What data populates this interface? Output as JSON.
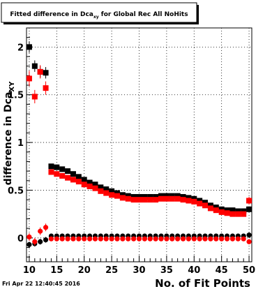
{
  "chart_data": {
    "type": "scatter",
    "title_main": "Fitted difference in Dca",
    "title_sub": "xy",
    "title_rest": " for Global Rec All NoHits",
    "ylabel_main": "difference in Dca",
    "ylabel_sub": "XY",
    "xlabel": "No. of Fit Points",
    "timestamp": "Fri Apr 22 12:40:45 2016",
    "xlim": [
      9.5,
      50.5
    ],
    "ylim": [
      -0.25,
      2.2
    ],
    "grid": true,
    "x_ticks": [
      10,
      15,
      20,
      25,
      30,
      35,
      40,
      45,
      50
    ],
    "x_tick_labels": [
      "10",
      "15",
      "20",
      "25",
      "30",
      "35",
      "40",
      "45",
      "50"
    ],
    "y_ticks": [
      0,
      0.5,
      1,
      1.5,
      2
    ],
    "y_tick_labels": [
      "0",
      "0.5",
      "1",
      "1.5",
      "2"
    ],
    "colors": {
      "black_series": "#000000",
      "red_series": "#ff0000"
    },
    "series": [
      {
        "marker": "square",
        "color": "#000000",
        "x": [
          10,
          11,
          12,
          13,
          14,
          15,
          16,
          17,
          18,
          19,
          20,
          21,
          22,
          23,
          24,
          25,
          26,
          27,
          28,
          29,
          30,
          31,
          32,
          33,
          34,
          35,
          36,
          37,
          38,
          39,
          40,
          41,
          42,
          43,
          44,
          45,
          46,
          47,
          48,
          49,
          50
        ],
        "y": [
          2.0,
          1.8,
          1.74,
          1.73,
          0.75,
          0.74,
          0.72,
          0.7,
          0.67,
          0.64,
          0.61,
          0.58,
          0.56,
          0.53,
          0.51,
          0.49,
          0.47,
          0.45,
          0.44,
          0.43,
          0.43,
          0.43,
          0.43,
          0.43,
          0.44,
          0.44,
          0.44,
          0.44,
          0.43,
          0.42,
          0.41,
          0.39,
          0.37,
          0.34,
          0.32,
          0.3,
          0.29,
          0.29,
          0.28,
          0.28,
          0.3
        ],
        "yerr": [
          0.06,
          0.06,
          0.06,
          0.06,
          0.01,
          0.01,
          0.01,
          0.01,
          0.01,
          0.01,
          0.01,
          0.01,
          0.01,
          0.01,
          0.01,
          0.01,
          0.01,
          0.01,
          0.01,
          0.01,
          0.01,
          0.01,
          0.01,
          0.01,
          0.01,
          0.01,
          0.01,
          0.01,
          0.01,
          0.01,
          0.01,
          0.01,
          0.01,
          0.01,
          0.01,
          0.01,
          0.01,
          0.01,
          0.01,
          0.01,
          0.03
        ]
      },
      {
        "marker": "square",
        "color": "#ff0000",
        "x": [
          10,
          11,
          12,
          13,
          14,
          15,
          16,
          17,
          18,
          19,
          20,
          21,
          22,
          23,
          24,
          25,
          26,
          27,
          28,
          29,
          30,
          31,
          32,
          33,
          34,
          35,
          36,
          37,
          38,
          39,
          40,
          41,
          42,
          43,
          44,
          45,
          46,
          47,
          48,
          49,
          50
        ],
        "y": [
          1.67,
          1.48,
          1.74,
          1.57,
          0.69,
          0.67,
          0.65,
          0.63,
          0.61,
          0.59,
          0.56,
          0.54,
          0.52,
          0.49,
          0.47,
          0.45,
          0.44,
          0.42,
          0.41,
          0.4,
          0.4,
          0.4,
          0.4,
          0.4,
          0.41,
          0.41,
          0.41,
          0.41,
          0.4,
          0.39,
          0.38,
          0.36,
          0.34,
          0.31,
          0.29,
          0.27,
          0.26,
          0.25,
          0.25,
          0.25,
          0.39
        ],
        "yerr": [
          0.08,
          0.07,
          0.07,
          0.07,
          0.01,
          0.01,
          0.01,
          0.01,
          0.01,
          0.01,
          0.01,
          0.01,
          0.01,
          0.01,
          0.01,
          0.01,
          0.01,
          0.01,
          0.01,
          0.01,
          0.01,
          0.01,
          0.01,
          0.01,
          0.01,
          0.01,
          0.01,
          0.01,
          0.01,
          0.01,
          0.01,
          0.01,
          0.01,
          0.01,
          0.01,
          0.01,
          0.01,
          0.01,
          0.01,
          0.01,
          0.04
        ]
      },
      {
        "marker": "circle",
        "color": "#000000",
        "x": [
          10,
          11,
          12,
          13,
          14,
          15,
          16,
          17,
          18,
          19,
          20,
          21,
          22,
          23,
          24,
          25,
          26,
          27,
          28,
          29,
          30,
          31,
          32,
          33,
          34,
          35,
          36,
          37,
          38,
          39,
          40,
          41,
          42,
          43,
          44,
          45,
          46,
          47,
          48,
          49,
          50
        ],
        "y": [
          -0.07,
          -0.06,
          -0.04,
          -0.02,
          0.02,
          0.02,
          0.02,
          0.02,
          0.02,
          0.02,
          0.02,
          0.02,
          0.02,
          0.02,
          0.02,
          0.02,
          0.02,
          0.02,
          0.02,
          0.02,
          0.02,
          0.02,
          0.02,
          0.02,
          0.02,
          0.02,
          0.02,
          0.02,
          0.02,
          0.02,
          0.02,
          0.02,
          0.02,
          0.02,
          0.02,
          0.02,
          0.02,
          0.02,
          0.02,
          0.02,
          0.03
        ],
        "yerr": [
          0.03,
          0.03,
          0.03,
          0.03,
          0.005,
          0.005,
          0.005,
          0.005,
          0.005,
          0.005,
          0.005,
          0.005,
          0.005,
          0.005,
          0.005,
          0.005,
          0.005,
          0.005,
          0.005,
          0.005,
          0.005,
          0.005,
          0.005,
          0.005,
          0.005,
          0.005,
          0.005,
          0.005,
          0.005,
          0.005,
          0.005,
          0.005,
          0.005,
          0.005,
          0.005,
          0.005,
          0.005,
          0.005,
          0.005,
          0.005,
          0.01
        ]
      },
      {
        "marker": "circle",
        "color": "#ff0000",
        "x": [
          10,
          11,
          12,
          13,
          14,
          15,
          16,
          17,
          18,
          19,
          20,
          21,
          22,
          23,
          24,
          25,
          26,
          27,
          28,
          29,
          30,
          31,
          32,
          33,
          34,
          35,
          36,
          37,
          38,
          39,
          40,
          41,
          42,
          43,
          44,
          45,
          46,
          47,
          48,
          49,
          50
        ],
        "y": [
          0.01,
          -0.04,
          0.07,
          0.11,
          -0.01,
          -0.01,
          -0.01,
          -0.01,
          -0.01,
          -0.01,
          -0.01,
          -0.01,
          -0.01,
          -0.01,
          -0.01,
          -0.01,
          -0.01,
          -0.01,
          -0.01,
          -0.01,
          -0.01,
          -0.01,
          -0.01,
          -0.01,
          -0.01,
          -0.01,
          -0.01,
          -0.01,
          -0.01,
          -0.01,
          -0.01,
          -0.01,
          -0.01,
          -0.01,
          -0.01,
          -0.01,
          -0.01,
          -0.01,
          -0.01,
          -0.01,
          -0.04
        ],
        "yerr": [
          0.04,
          0.04,
          0.04,
          0.04,
          0.005,
          0.005,
          0.005,
          0.005,
          0.005,
          0.005,
          0.005,
          0.005,
          0.005,
          0.005,
          0.005,
          0.005,
          0.005,
          0.005,
          0.005,
          0.005,
          0.005,
          0.005,
          0.005,
          0.005,
          0.005,
          0.005,
          0.005,
          0.005,
          0.005,
          0.005,
          0.005,
          0.005,
          0.005,
          0.005,
          0.005,
          0.005,
          0.005,
          0.005,
          0.005,
          0.005,
          0.01
        ]
      }
    ]
  }
}
